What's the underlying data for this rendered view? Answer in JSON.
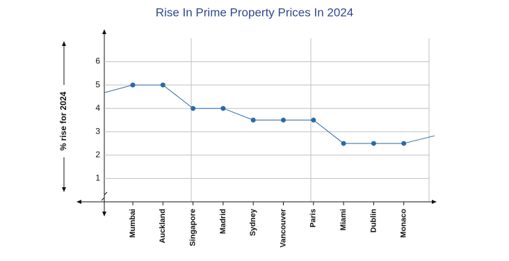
{
  "chart_data": {
    "type": "line",
    "title": "Rise In Prime Property Prices In 2024",
    "y_label": "% rise for 2024",
    "categories": [
      "Mumbai",
      "Auckland",
      "Singapore",
      "Madrid",
      "Sydney",
      "Vancouver",
      "Paris",
      "Miami",
      "Dublin",
      "Monaco"
    ],
    "values": [
      5,
      5,
      4,
      4,
      3.5,
      3.5,
      3.5,
      2.5,
      2.5,
      2.5
    ],
    "color": "#2a6aa8",
    "ylim": [
      0,
      7
    ],
    "yticks": [
      1,
      2,
      3,
      4,
      5,
      6
    ],
    "grid": true
  }
}
